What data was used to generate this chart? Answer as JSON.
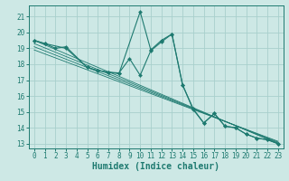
{
  "xlabel": "Humidex (Indice chaleur)",
  "background_color": "#cde8e5",
  "grid_color": "#a8d0cc",
  "line_color": "#1e7a70",
  "xlim": [
    -0.5,
    23.5
  ],
  "ylim": [
    12.7,
    21.7
  ],
  "xticks": [
    0,
    1,
    2,
    3,
    4,
    5,
    6,
    7,
    8,
    9,
    10,
    11,
    12,
    13,
    14,
    15,
    16,
    17,
    18,
    19,
    20,
    21,
    22,
    23
  ],
  "yticks": [
    13,
    14,
    15,
    16,
    17,
    18,
    19,
    20,
    21
  ],
  "series1": [
    [
      0,
      19.5
    ],
    [
      1,
      19.3
    ],
    [
      2,
      19.0
    ],
    [
      3,
      19.1
    ],
    [
      5,
      17.8
    ],
    [
      6,
      17.6
    ],
    [
      7,
      17.5
    ],
    [
      8,
      17.4
    ],
    [
      10,
      21.3
    ],
    [
      11,
      18.9
    ],
    [
      12,
      19.5
    ],
    [
      13,
      19.9
    ],
    [
      14,
      16.7
    ],
    [
      15,
      15.2
    ],
    [
      16,
      14.3
    ],
    [
      17,
      14.9
    ],
    [
      18,
      14.1
    ],
    [
      19,
      14.0
    ],
    [
      20,
      13.6
    ],
    [
      21,
      13.35
    ],
    [
      22,
      13.25
    ],
    [
      23,
      13.0
    ]
  ],
  "series2": [
    [
      0,
      19.5
    ],
    [
      1,
      19.3
    ],
    [
      3,
      19.0
    ],
    [
      5,
      17.8
    ],
    [
      6,
      17.6
    ],
    [
      7,
      17.5
    ],
    [
      8,
      17.45
    ],
    [
      9,
      18.35
    ],
    [
      10,
      17.3
    ],
    [
      11,
      18.85
    ],
    [
      12,
      19.4
    ],
    [
      13,
      19.9
    ],
    [
      14,
      16.7
    ],
    [
      15,
      15.15
    ],
    [
      16,
      14.3
    ],
    [
      17,
      14.9
    ],
    [
      18,
      14.1
    ],
    [
      19,
      14.0
    ],
    [
      20,
      13.6
    ],
    [
      21,
      13.35
    ],
    [
      22,
      13.25
    ],
    [
      23,
      13.0
    ]
  ],
  "regression_lines": [
    {
      "x": [
        0,
        23
      ],
      "y": [
        19.5,
        13.0
      ]
    },
    {
      "x": [
        0,
        23
      ],
      "y": [
        19.3,
        13.05
      ]
    },
    {
      "x": [
        0,
        23
      ],
      "y": [
        19.1,
        13.1
      ]
    },
    {
      "x": [
        0,
        23
      ],
      "y": [
        18.9,
        13.15
      ]
    }
  ],
  "marker_size": 2.2,
  "line_width": 0.8,
  "tick_fontsize": 5.5,
  "xlabel_fontsize": 7.0
}
